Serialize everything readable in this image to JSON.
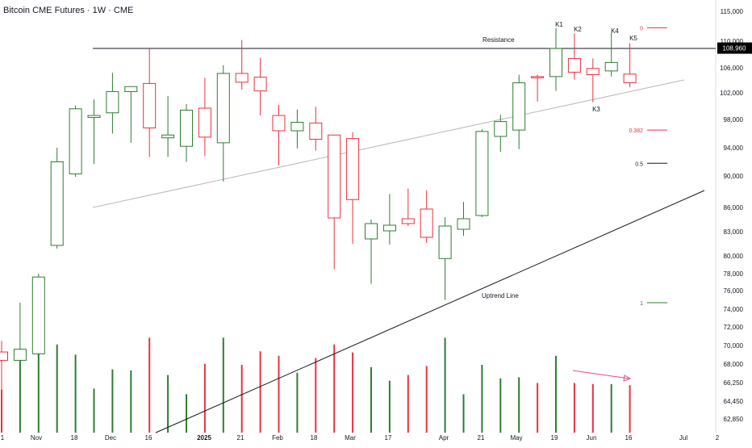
{
  "chart_data": {
    "type": "candlestick",
    "title": "Bitcoin CME Futures · 1W · CME",
    "colors": {
      "up": "#2e7d32",
      "down": "#e8323f",
      "fib": "#e8323f",
      "fib_half": "#131722",
      "fib_one": "#2e7d32",
      "volume_trend": "#e0507a",
      "price_label_bg": "#000000"
    },
    "y_axis": {
      "ticks": [
        115000,
        110000,
        106000,
        102000,
        98000,
        94000,
        90000,
        86000,
        83000,
        80000,
        78000,
        76000,
        74000,
        72000,
        70000,
        68000,
        66250,
        64450,
        62850
      ],
      "tick_labels": [
        "115,000",
        "110,000",
        "106,000",
        "102,000",
        "98,000",
        "94,000",
        "90,000",
        "86,000",
        "83,000",
        "80,000",
        "78,000",
        "76,000",
        "74,000",
        "72,000",
        "70,000",
        "68,000",
        "66,250",
        "64,450",
        "62,850"
      ],
      "current_price": 108960,
      "current_price_label": "108,960"
    },
    "x_axis": {
      "labels": [
        "1",
        "Nov",
        "18",
        "Dec",
        "16",
        "2025",
        "21",
        "Feb",
        "18",
        "Mar",
        "17",
        "Apr",
        "21",
        "May",
        "19",
        "Jun",
        "16",
        "Jul",
        "2"
      ],
      "bold": [
        "2025"
      ]
    },
    "candles": [
      {
        "o": 69300,
        "h": 70500,
        "l": 65400,
        "c": 68400,
        "v": 0.38
      },
      {
        "o": 68400,
        "h": 74700,
        "l": 65400,
        "c": 69600,
        "v": 0.72
      },
      {
        "o": 69100,
        "h": 78000,
        "l": 65600,
        "c": 77600,
        "v": 0.83
      },
      {
        "o": 81300,
        "h": 94000,
        "l": 80900,
        "c": 92000,
        "v": 0.78
      },
      {
        "o": 90300,
        "h": 100100,
        "l": 89900,
        "c": 99600,
        "v": 0.69
      },
      {
        "o": 98300,
        "h": 101000,
        "l": 91700,
        "c": 98600,
        "v": 0.39
      },
      {
        "o": 99000,
        "h": 105200,
        "l": 96000,
        "c": 102200,
        "v": 0.56
      },
      {
        "o": 102200,
        "h": 103000,
        "l": 94700,
        "c": 103000,
        "v": 0.55
      },
      {
        "o": 103500,
        "h": 109000,
        "l": 92700,
        "c": 96800,
        "v": 0.84
      },
      {
        "o": 95400,
        "h": 101500,
        "l": 92700,
        "c": 95800,
        "v": 0.51
      },
      {
        "o": 94200,
        "h": 100300,
        "l": 92000,
        "c": 99400,
        "v": 0.34
      },
      {
        "o": 99700,
        "h": 104400,
        "l": 92800,
        "c": 95500,
        "v": 0.61
      },
      {
        "o": 94700,
        "h": 106400,
        "l": 89300,
        "c": 105100,
        "v": 0.84
      },
      {
        "o": 105100,
        "h": 110200,
        "l": 102500,
        "c": 103700,
        "v": 0.6
      },
      {
        "o": 104500,
        "h": 107500,
        "l": 98600,
        "c": 102300,
        "v": 0.72
      },
      {
        "o": 98600,
        "h": 100200,
        "l": 91500,
        "c": 96400,
        "v": 0.68
      },
      {
        "o": 96400,
        "h": 99500,
        "l": 93900,
        "c": 97600,
        "v": 0.53
      },
      {
        "o": 97500,
        "h": 99900,
        "l": 93600,
        "c": 95200,
        "v": 0.66
      },
      {
        "o": 95800,
        "h": 95800,
        "l": 78500,
        "c": 84700,
        "v": 0.78
      },
      {
        "o": 95300,
        "h": 96200,
        "l": 81500,
        "c": 87000,
        "v": 0.71
      },
      {
        "o": 82100,
        "h": 84500,
        "l": 76800,
        "c": 84000,
        "v": 0.58
      },
      {
        "o": 83100,
        "h": 87700,
        "l": 81400,
        "c": 83800,
        "v": 0.46
      },
      {
        "o": 84600,
        "h": 88400,
        "l": 83700,
        "c": 84000,
        "v": 0.51
      },
      {
        "o": 85800,
        "h": 88200,
        "l": 81600,
        "c": 82300,
        "v": 0.59
      },
      {
        "o": 79700,
        "h": 84800,
        "l": 75000,
        "c": 83700,
        "v": 0.84
      },
      {
        "o": 83300,
        "h": 86700,
        "l": 82500,
        "c": 84600,
        "v": 0.34
      },
      {
        "o": 85000,
        "h": 96600,
        "l": 84800,
        "c": 96300,
        "v": 0.6
      },
      {
        "o": 95600,
        "h": 98700,
        "l": 93400,
        "c": 97700,
        "v": 0.48
      },
      {
        "o": 96500,
        "h": 104900,
        "l": 93800,
        "c": 103600,
        "v": 0.49
      },
      {
        "o": 104600,
        "h": 104900,
        "l": 100700,
        "c": 104400,
        "v": 0.44
      },
      {
        "o": 104600,
        "h": 112200,
        "l": 102300,
        "c": 108900,
        "v": 0.68
      },
      {
        "o": 107400,
        "h": 111300,
        "l": 104100,
        "c": 105300,
        "v": 0.44
      },
      {
        "o": 105900,
        "h": 107400,
        "l": 100600,
        "c": 104900,
        "v": 0.43
      },
      {
        "o": 105500,
        "h": 111400,
        "l": 104600,
        "c": 106800,
        "v": 0.43
      },
      {
        "o": 105000,
        "h": 109700,
        "l": 102900,
        "c": 103600,
        "v": 0.42
      }
    ],
    "fib_levels": [
      {
        "label": "0",
        "price": 112250
      },
      {
        "label": "0.382",
        "price": 96500
      },
      {
        "label": "0.5",
        "price": 91800
      },
      {
        "label": "1",
        "price": 74700
      }
    ],
    "annotations": {
      "resistance": "Resistance",
      "uptrend": "Uptrend Line",
      "k_labels": [
        "K1",
        "K2",
        "K3",
        "K4",
        "K5"
      ]
    }
  }
}
